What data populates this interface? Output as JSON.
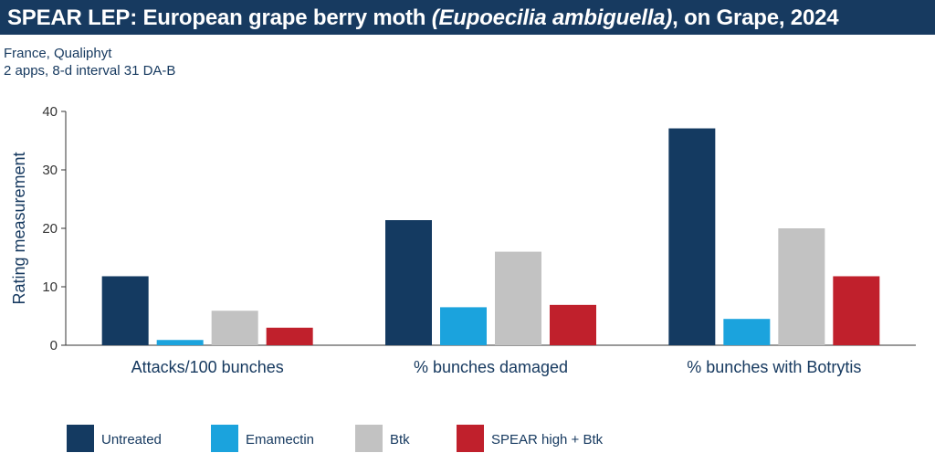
{
  "header": {
    "title_prefix": "SPEAR LEP: European grape berry moth ",
    "title_scientific": "(Eupoecilia ambiguella)",
    "title_suffix": ", on Grape, 2024",
    "subtitle_line1": "France, Qualiphyt",
    "subtitle_line2": "2 apps, 8-d interval 31 DA-B"
  },
  "colors": {
    "header_bg": "#173a60",
    "Untreated": "#143a61",
    "Emamectin": "#1ba3dd",
    "Btk": "#c2c2c2",
    "SPEAR high + Btk": "#c0202c"
  },
  "chart_data": {
    "type": "bar",
    "title": "SPEAR LEP: European grape berry moth (Eupoecilia ambiguella), on Grape, 2024",
    "xlabel": "",
    "ylabel": "Rating measurement",
    "ylim": [
      0,
      40
    ],
    "yticks": [
      0,
      10,
      20,
      30,
      40
    ],
    "categories": [
      "Attacks/100 bunches",
      "% bunches damaged",
      "% bunches with Botrytis"
    ],
    "series": [
      {
        "name": "Untreated",
        "values": [
          11.8,
          21.4,
          37.1
        ]
      },
      {
        "name": "Emamectin",
        "values": [
          0.9,
          6.5,
          4.5
        ]
      },
      {
        "name": "Btk",
        "values": [
          5.9,
          16.0,
          20.0
        ]
      },
      {
        "name": "SPEAR high + Btk",
        "values": [
          3.0,
          6.9,
          11.8
        ]
      }
    ],
    "grid": false,
    "legend_position": "bottom"
  }
}
